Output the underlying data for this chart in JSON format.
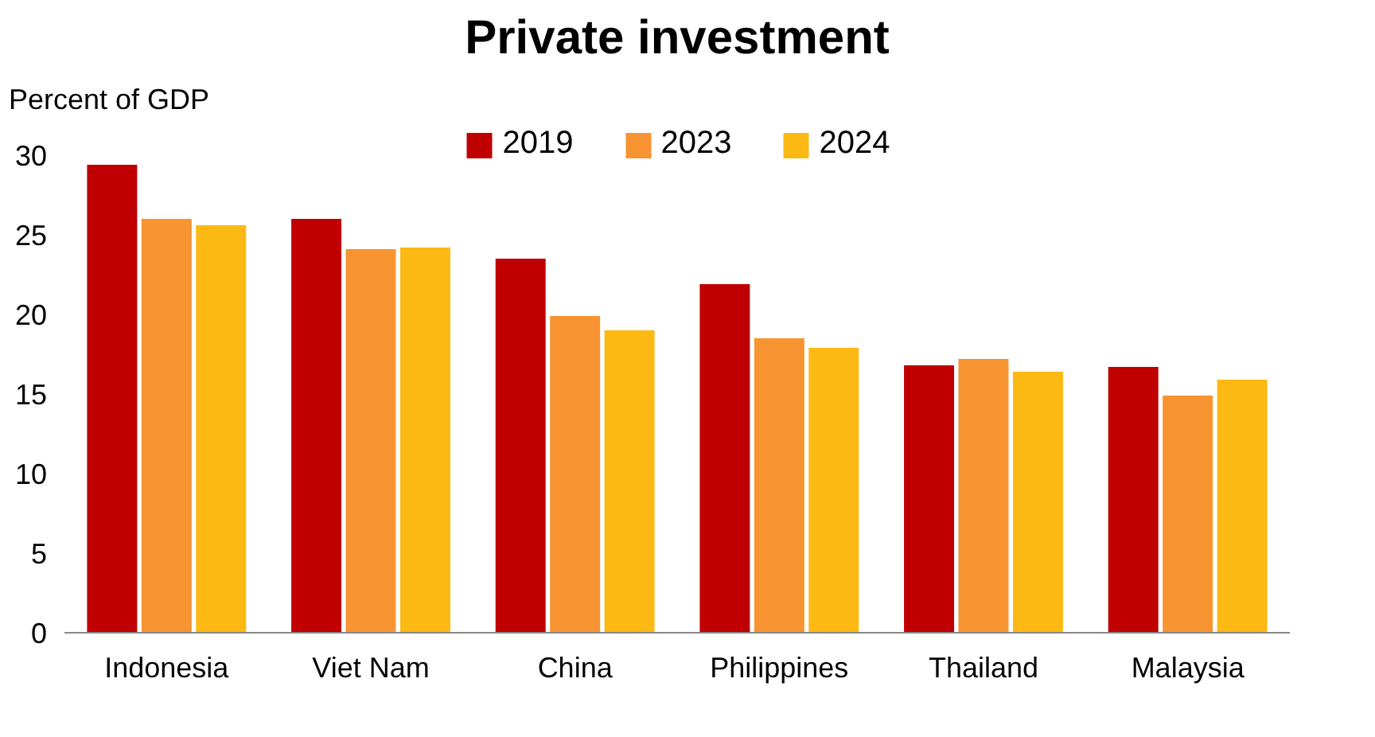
{
  "chart_data": {
    "type": "bar",
    "title": "Private investment",
    "ylabel": "Percent of GDP",
    "categories": [
      "Indonesia",
      "Viet Nam",
      "China",
      "Philippines",
      "Thailand",
      "Malaysia"
    ],
    "series": [
      {
        "name": "2019",
        "color": "#c00000",
        "values": [
          29.4,
          26.0,
          23.5,
          21.9,
          16.8,
          16.7
        ]
      },
      {
        "name": "2023",
        "color": "#f79431",
        "values": [
          26.0,
          24.1,
          19.9,
          18.5,
          17.2,
          14.9
        ]
      },
      {
        "name": "2024",
        "color": "#fdb913",
        "values": [
          25.6,
          24.2,
          19.0,
          17.9,
          16.4,
          15.9
        ]
      }
    ],
    "ylim": [
      0,
      32
    ],
    "yticks": [
      0,
      5,
      10,
      15,
      20,
      25,
      30
    ],
    "legend": "top",
    "grid": false
  }
}
